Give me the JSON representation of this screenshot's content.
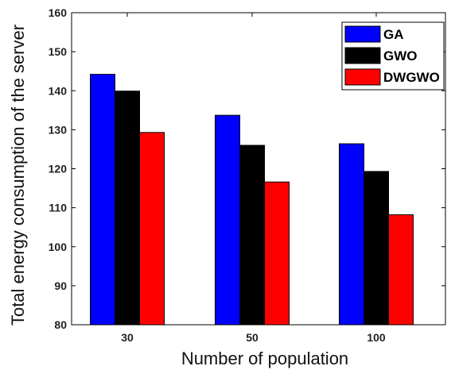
{
  "chart_data": {
    "type": "bar",
    "categories": [
      "30",
      "50",
      "100"
    ],
    "series": [
      {
        "name": "GA",
        "color": "#0000ff",
        "values": [
          144.2,
          133.7,
          126.4
        ]
      },
      {
        "name": "GWO",
        "color": "#000000",
        "values": [
          139.9,
          126.0,
          119.3
        ]
      },
      {
        "name": "DWGWO",
        "color": "#ff0000",
        "values": [
          129.3,
          116.6,
          108.2
        ]
      }
    ],
    "xlabel": "Number of population",
    "ylabel": "Total energy consumption of the server",
    "ylim": [
      80,
      160
    ],
    "yticks": [
      "80",
      "90",
      "100",
      "110",
      "120",
      "130",
      "140",
      "150",
      "160"
    ],
    "grid": false,
    "legend_position": "top-right"
  }
}
